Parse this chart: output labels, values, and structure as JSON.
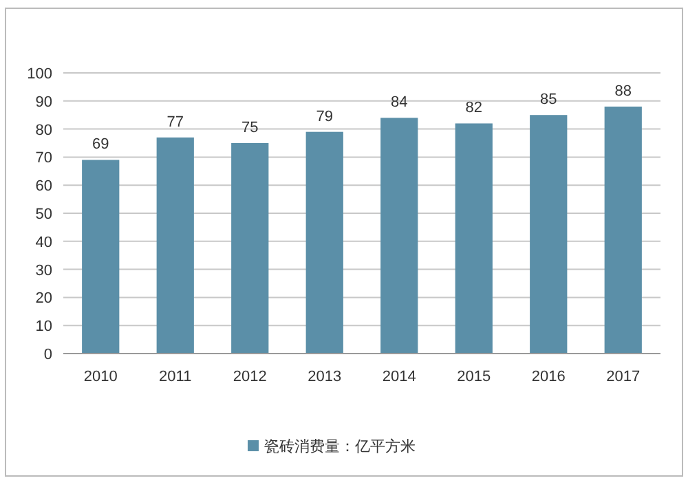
{
  "chart_data": {
    "type": "bar",
    "categories": [
      "2010",
      "2011",
      "2012",
      "2013",
      "2014",
      "2015",
      "2016",
      "2017"
    ],
    "series": [
      {
        "name": "瓷砖消费量：亿平方米",
        "color": "#5b8fa8",
        "values": [
          69,
          77,
          75,
          79,
          84,
          82,
          85,
          88
        ]
      }
    ],
    "ylim": [
      0,
      100
    ],
    "yticks": [
      0,
      10,
      20,
      30,
      40,
      50,
      60,
      70,
      80,
      90,
      100
    ],
    "grid": "y",
    "legend": "bottom",
    "data_labels": true
  }
}
